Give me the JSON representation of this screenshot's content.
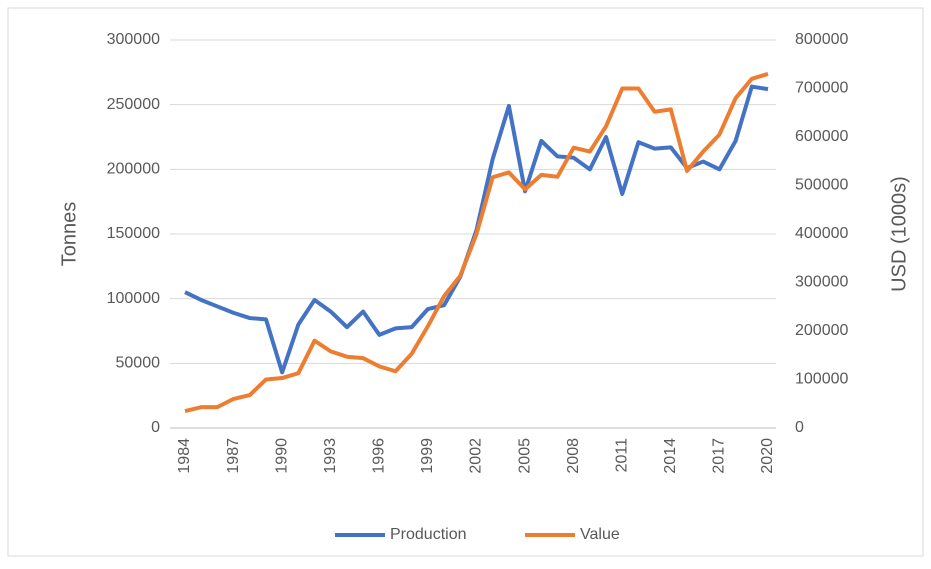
{
  "chart_data": {
    "type": "line",
    "ylabel": "Tonnes",
    "y2label": "USD (1000s)",
    "x": [
      1984,
      1985,
      1986,
      1987,
      1988,
      1989,
      1990,
      1991,
      1992,
      1993,
      1994,
      1995,
      1996,
      1997,
      1998,
      1999,
      2000,
      2001,
      2002,
      2003,
      2004,
      2005,
      2006,
      2007,
      2008,
      2009,
      2010,
      2011,
      2012,
      2013,
      2014,
      2015,
      2016,
      2017,
      2018,
      2019,
      2020
    ],
    "xlim": [
      1984,
      2020
    ],
    "xticks": [
      1984,
      1987,
      1990,
      1993,
      1996,
      1999,
      2002,
      2005,
      2008,
      2011,
      2014,
      2017,
      2020
    ],
    "ylim": [
      0,
      300000
    ],
    "yticks": [
      0,
      50000,
      100000,
      150000,
      200000,
      250000,
      300000
    ],
    "y2lim": [
      0,
      800000
    ],
    "y2ticks": [
      0,
      100000,
      200000,
      300000,
      400000,
      500000,
      600000,
      700000,
      800000
    ],
    "grid": true,
    "legend": "bottom",
    "series": [
      {
        "name": "Production",
        "color": "#4472c4",
        "values": [
          105000,
          99000,
          94000,
          89000,
          85000,
          84000,
          43000,
          80000,
          99000,
          90000,
          78000,
          90000,
          72000,
          77000,
          78000,
          92000,
          95000,
          117000,
          153000,
          208000,
          249000,
          183000,
          222000,
          210000,
          209000,
          200000,
          225000,
          181000,
          221000,
          216000,
          217000,
          201000,
          206000,
          200000,
          222000,
          264000,
          262000
        ]
      },
      {
        "name": "Value",
        "color": "#ed7d31",
        "axis": "y2",
        "values": [
          35000,
          43000,
          43000,
          60000,
          68000,
          100000,
          103000,
          113000,
          180000,
          158000,
          147000,
          144000,
          127000,
          117000,
          153000,
          210000,
          272000,
          314000,
          400000,
          517000,
          527000,
          492000,
          522000,
          518000,
          578000,
          570000,
          622000,
          700000,
          700000,
          652000,
          657000,
          530000,
          570000,
          605000,
          680000,
          720000,
          730000
        ]
      }
    ]
  }
}
